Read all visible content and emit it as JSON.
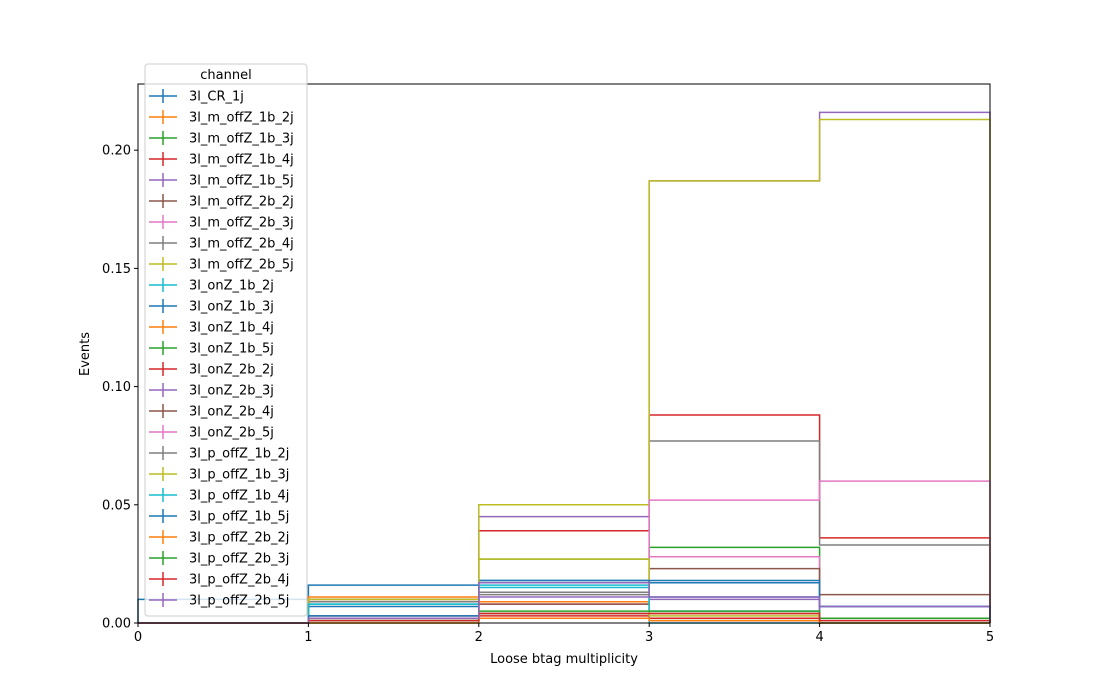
{
  "chart_data": {
    "type": "step",
    "xlabel": "Loose btag multiplicity",
    "ylabel": "Events",
    "xlim": [
      0,
      5
    ],
    "ylim": [
      0,
      0.228
    ],
    "x_ticks": [
      "0",
      "1",
      "2",
      "3",
      "4",
      "5"
    ],
    "y_ticks": [
      "0.00",
      "0.05",
      "0.10",
      "0.15",
      "0.20"
    ],
    "bin_edges": [
      0,
      1,
      2,
      3,
      4,
      5
    ],
    "legend_title": "channel",
    "legend_location": "upper-left",
    "grid": false,
    "series": [
      {
        "name": "3l_CR_1j",
        "color": "#1f77b4",
        "values": [
          0.01,
          0.016,
          0.018,
          0.017,
          0.007
        ]
      },
      {
        "name": "3l_m_offZ_1b_2j",
        "color": "#ff7f0e",
        "values": [
          0.0,
          0.011,
          0.008,
          0.002,
          0.0
        ]
      },
      {
        "name": "3l_m_offZ_1b_3j",
        "color": "#2ca02c",
        "values": [
          0.0,
          0.01,
          0.027,
          0.032,
          0.0
        ]
      },
      {
        "name": "3l_m_offZ_1b_4j",
        "color": "#d62728",
        "values": [
          0.0,
          0.01,
          0.039,
          0.088,
          0.036
        ]
      },
      {
        "name": "3l_m_offZ_1b_5j",
        "color": "#9467bd",
        "values": [
          0.0,
          0.009,
          0.045,
          0.187,
          0.216
        ]
      },
      {
        "name": "3l_m_offZ_2b_2j",
        "color": "#8c564b",
        "values": [
          0.0,
          0.001,
          0.004,
          0.002,
          0.0
        ]
      },
      {
        "name": "3l_m_offZ_2b_3j",
        "color": "#e377c2",
        "values": [
          0.0,
          0.001,
          0.008,
          0.028,
          0.0
        ]
      },
      {
        "name": "3l_m_offZ_2b_4j",
        "color": "#7f7f7f",
        "values": [
          0.0,
          0.001,
          0.012,
          0.077,
          0.033
        ]
      },
      {
        "name": "3l_m_offZ_2b_5j",
        "color": "#bcbd22",
        "values": [
          0.0,
          0.0,
          0.05,
          0.187,
          0.213
        ]
      },
      {
        "name": "3l_onZ_1b_2j",
        "color": "#17becf",
        "values": [
          0.0,
          0.008,
          0.015,
          0.0,
          0.0
        ]
      },
      {
        "name": "3l_onZ_1b_3j",
        "color": "#1f77b4",
        "values": [
          0.0,
          0.007,
          0.018,
          0.011,
          0.0
        ]
      },
      {
        "name": "3l_onZ_1b_4j",
        "color": "#ff7f0e",
        "values": [
          0.0,
          0.003,
          0.009,
          0.004,
          0.0
        ]
      },
      {
        "name": "3l_onZ_1b_5j",
        "color": "#2ca02c",
        "values": [
          0.0,
          0.002,
          0.004,
          0.004,
          0.001
        ]
      },
      {
        "name": "3l_onZ_2b_2j",
        "color": "#d62728",
        "values": [
          0.0,
          0.002,
          0.003,
          0.002,
          0.0
        ]
      },
      {
        "name": "3l_onZ_2b_3j",
        "color": "#9467bd",
        "values": [
          0.0,
          0.003,
          0.011,
          0.01,
          0.0
        ]
      },
      {
        "name": "3l_onZ_2b_4j",
        "color": "#8c564b",
        "values": [
          0.0,
          0.001,
          0.008,
          0.023,
          0.012
        ]
      },
      {
        "name": "3l_onZ_2b_5j",
        "color": "#e377c2",
        "values": [
          0.0,
          0.002,
          0.017,
          0.052,
          0.06
        ]
      },
      {
        "name": "3l_p_offZ_1b_2j",
        "color": "#7f7f7f",
        "values": [
          0.0,
          0.009,
          0.013,
          0.001,
          0.0
        ]
      },
      {
        "name": "3l_p_offZ_1b_3j",
        "color": "#bcbd22",
        "values": [
          0.0,
          0.01,
          0.027,
          0.003,
          0.0
        ]
      },
      {
        "name": "3l_p_offZ_1b_4j",
        "color": "#17becf",
        "values": [
          0.0,
          0.008,
          0.016,
          0.005,
          0.0
        ]
      },
      {
        "name": "3l_p_offZ_1b_5j",
        "color": "#1f77b4",
        "values": [
          0.0,
          0.003,
          0.017,
          0.018,
          0.007
        ]
      },
      {
        "name": "3l_p_offZ_2b_2j",
        "color": "#ff7f0e",
        "values": [
          0.0,
          0.0,
          0.002,
          0.001,
          0.0
        ]
      },
      {
        "name": "3l_p_offZ_2b_3j",
        "color": "#2ca02c",
        "values": [
          0.0,
          0.001,
          0.005,
          0.005,
          0.002
        ]
      },
      {
        "name": "3l_p_offZ_2b_4j",
        "color": "#d62728",
        "values": [
          0.0,
          0.001,
          0.004,
          0.004,
          0.001
        ]
      },
      {
        "name": "3l_p_offZ_2b_5j",
        "color": "#9467bd",
        "values": [
          0.0,
          0.002,
          0.017,
          0.011,
          0.007
        ]
      }
    ]
  }
}
